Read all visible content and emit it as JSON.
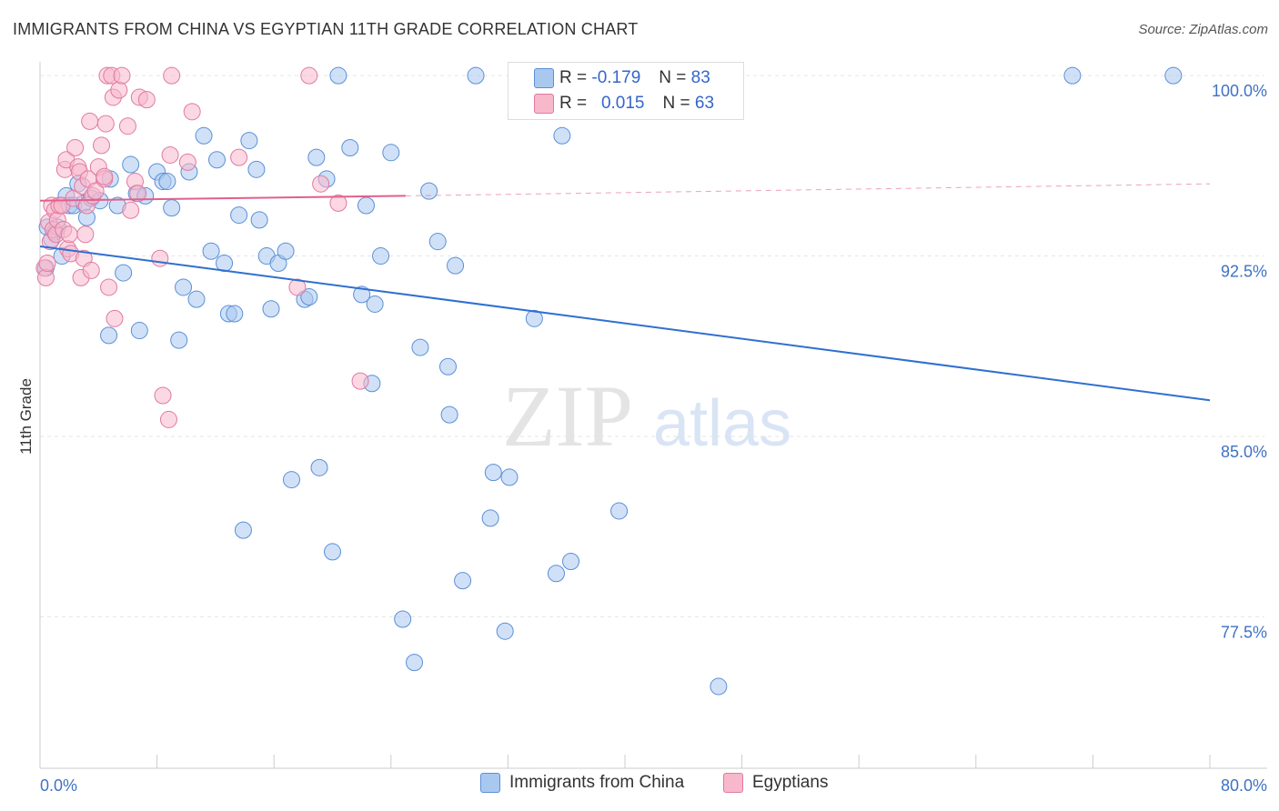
{
  "title": "IMMIGRANTS FROM CHINA VS EGYPTIAN 11TH GRADE CORRELATION CHART",
  "source": "Source: ZipAtlas.com",
  "legend": {
    "rows": [
      {
        "r_label": "R =",
        "r_value": "-0.179",
        "n_label": "N =",
        "n_value": "83",
        "color": "#a9c8f0",
        "border": "#5b8fd6"
      },
      {
        "r_label": "R =",
        "r_value": "0.015",
        "n_label": "N =",
        "n_value": "63",
        "color": "#f7b8cc",
        "border": "#e07aa0"
      }
    ]
  },
  "bottom_legend": [
    {
      "label": "Immigrants from China",
      "color": "#a9c8f0",
      "border": "#5b8fd6"
    },
    {
      "label": "Egyptians",
      "color": "#f7b8cc",
      "border": "#e07aa0"
    }
  ],
  "watermark": {
    "zip": "ZIP",
    "atlas": "atlas"
  },
  "chart_data": {
    "type": "scatter",
    "xlabel": "",
    "ylabel": "11th Grade",
    "xlim": [
      0,
      80
    ],
    "ylim": [
      71.2,
      100.8
    ],
    "x_tick_labels": [
      "0.0%",
      "80.0%"
    ],
    "y_ticks": [
      100,
      92.5,
      85,
      77.5
    ],
    "y_tick_labels": [
      "100.0%",
      "92.5%",
      "85.0%",
      "77.5%"
    ],
    "grid": true,
    "series": [
      {
        "name": "Immigrants from China",
        "color": "#a9c8f0",
        "stroke": "#5b8fd6",
        "trend": {
          "x": [
            0,
            80
          ],
          "y": [
            92.9,
            86.5
          ],
          "color": "#2f6fd0",
          "dashed_from": null
        },
        "points": [
          [
            0.4,
            92.0
          ],
          [
            0.5,
            93.7
          ],
          [
            0.8,
            93.2
          ],
          [
            1.0,
            93.5
          ],
          [
            1.2,
            93.7
          ],
          [
            1.5,
            92.5
          ],
          [
            1.8,
            95.0
          ],
          [
            2.0,
            94.6
          ],
          [
            2.3,
            94.6
          ],
          [
            2.6,
            95.5
          ],
          [
            3.0,
            94.7
          ],
          [
            3.2,
            94.1
          ],
          [
            3.5,
            94.9
          ],
          [
            4.1,
            94.8
          ],
          [
            4.8,
            95.7
          ],
          [
            4.7,
            89.2
          ],
          [
            5.3,
            94.6
          ],
          [
            5.7,
            91.8
          ],
          [
            6.2,
            96.3
          ],
          [
            6.6,
            95.1
          ],
          [
            6.8,
            89.4
          ],
          [
            7.2,
            95.0
          ],
          [
            8.0,
            96.0
          ],
          [
            8.4,
            95.6
          ],
          [
            8.7,
            95.6
          ],
          [
            9.0,
            94.5
          ],
          [
            9.5,
            89.0
          ],
          [
            9.8,
            91.2
          ],
          [
            10.2,
            96.0
          ],
          [
            10.7,
            90.7
          ],
          [
            11.2,
            97.5
          ],
          [
            11.7,
            92.7
          ],
          [
            12.1,
            96.5
          ],
          [
            12.6,
            92.2
          ],
          [
            12.9,
            90.1
          ],
          [
            13.3,
            90.1
          ],
          [
            13.6,
            94.2
          ],
          [
            13.9,
            81.1
          ],
          [
            14.3,
            97.3
          ],
          [
            14.8,
            96.1
          ],
          [
            15.0,
            94.0
          ],
          [
            15.5,
            92.5
          ],
          [
            15.8,
            90.3
          ],
          [
            16.3,
            92.2
          ],
          [
            16.8,
            92.7
          ],
          [
            17.2,
            83.2
          ],
          [
            18.1,
            90.7
          ],
          [
            18.4,
            90.8
          ],
          [
            18.9,
            96.6
          ],
          [
            19.1,
            83.7
          ],
          [
            19.6,
            95.7
          ],
          [
            20.0,
            80.2
          ],
          [
            20.4,
            100.0
          ],
          [
            21.2,
            97.0
          ],
          [
            22.0,
            90.9
          ],
          [
            22.3,
            94.6
          ],
          [
            22.7,
            87.2
          ],
          [
            22.9,
            90.5
          ],
          [
            23.3,
            92.5
          ],
          [
            24.0,
            96.8
          ],
          [
            24.8,
            77.4
          ],
          [
            25.6,
            75.6
          ],
          [
            26.0,
            88.7
          ],
          [
            26.6,
            95.2
          ],
          [
            27.2,
            93.1
          ],
          [
            27.9,
            87.9
          ],
          [
            28.0,
            85.9
          ],
          [
            28.4,
            92.1
          ],
          [
            28.9,
            79.0
          ],
          [
            29.8,
            100.0
          ],
          [
            30.8,
            81.6
          ],
          [
            31.0,
            83.5
          ],
          [
            31.8,
            76.9
          ],
          [
            32.1,
            83.3
          ],
          [
            32.7,
            100.0
          ],
          [
            33.8,
            89.9
          ],
          [
            35.3,
            79.3
          ],
          [
            35.7,
            97.5
          ],
          [
            36.3,
            79.8
          ],
          [
            39.6,
            81.9
          ],
          [
            46.4,
            74.6
          ],
          [
            70.6,
            100.0
          ],
          [
            77.5,
            100.0
          ]
        ]
      },
      {
        "name": "Egyptians",
        "color": "#f7b8cc",
        "stroke": "#e07aa0",
        "trend": {
          "x": [
            0,
            25,
            80
          ],
          "y": [
            94.8,
            95.0,
            95.5
          ],
          "color": "#e0608c",
          "dashed_from": 25
        },
        "points": [
          [
            0.3,
            92.0
          ],
          [
            0.4,
            91.6
          ],
          [
            0.5,
            92.2
          ],
          [
            0.6,
            93.9
          ],
          [
            0.7,
            93.1
          ],
          [
            0.8,
            94.6
          ],
          [
            0.9,
            93.6
          ],
          [
            1.0,
            94.4
          ],
          [
            1.1,
            93.4
          ],
          [
            1.2,
            94.0
          ],
          [
            1.3,
            94.6
          ],
          [
            1.5,
            94.6
          ],
          [
            1.6,
            93.6
          ],
          [
            1.7,
            96.1
          ],
          [
            1.8,
            96.5
          ],
          [
            1.9,
            92.8
          ],
          [
            2.0,
            93.4
          ],
          [
            2.1,
            92.6
          ],
          [
            2.3,
            94.9
          ],
          [
            2.4,
            97.0
          ],
          [
            2.6,
            96.2
          ],
          [
            2.7,
            96.0
          ],
          [
            2.8,
            91.6
          ],
          [
            2.9,
            95.4
          ],
          [
            3.0,
            92.4
          ],
          [
            3.1,
            93.4
          ],
          [
            3.2,
            94.6
          ],
          [
            3.3,
            95.7
          ],
          [
            3.4,
            98.1
          ],
          [
            3.5,
            91.9
          ],
          [
            3.6,
            95.0
          ],
          [
            3.8,
            95.2
          ],
          [
            4.0,
            96.2
          ],
          [
            4.2,
            97.1
          ],
          [
            4.4,
            95.7
          ],
          [
            4.5,
            98.0
          ],
          [
            4.6,
            100.0
          ],
          [
            4.7,
            91.2
          ],
          [
            4.9,
            100.0
          ],
          [
            5.0,
            99.1
          ],
          [
            5.1,
            89.9
          ],
          [
            5.4,
            99.4
          ],
          [
            5.6,
            100.0
          ],
          [
            6.0,
            97.9
          ],
          [
            6.2,
            94.4
          ],
          [
            6.5,
            95.6
          ],
          [
            6.7,
            95.1
          ],
          [
            6.8,
            99.1
          ],
          [
            7.3,
            99.0
          ],
          [
            8.2,
            92.4
          ],
          [
            8.4,
            86.7
          ],
          [
            8.8,
            85.7
          ],
          [
            8.9,
            96.7
          ],
          [
            9.0,
            100.0
          ],
          [
            10.1,
            96.4
          ],
          [
            10.4,
            98.5
          ],
          [
            13.6,
            96.6
          ],
          [
            17.6,
            91.2
          ],
          [
            18.4,
            100.0
          ],
          [
            19.2,
            95.5
          ],
          [
            20.4,
            94.7
          ],
          [
            21.9,
            87.3
          ],
          [
            4.4,
            95.8
          ]
        ]
      }
    ]
  }
}
